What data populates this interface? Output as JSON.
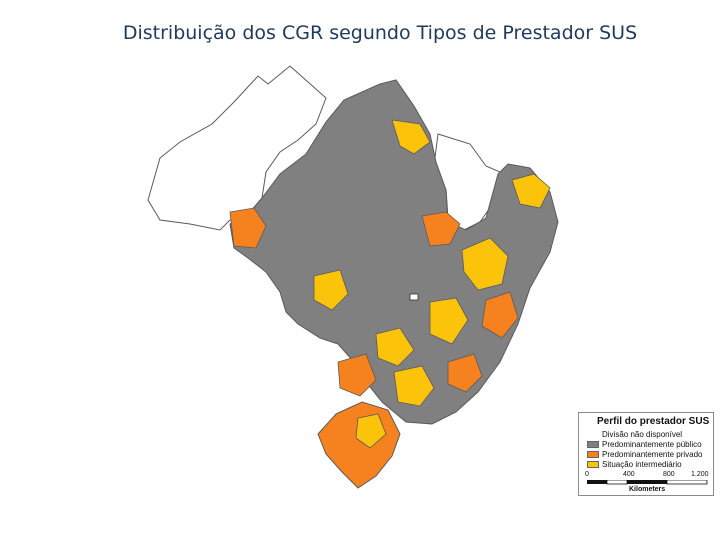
{
  "title": "Distribuição dos CGR segundo Tipos de Prestador SUS",
  "colors": {
    "not_available": "#ffffff",
    "public": "#808080",
    "private": "#f6821f",
    "intermediate": "#fcc30b",
    "border": "#5a5a5a"
  },
  "legend": {
    "title": "Perfil do prestador SUS",
    "items": [
      {
        "label": "Divisão não disponível",
        "color": "#ffffff"
      },
      {
        "label": "Predominantemente público",
        "color": "#808080"
      },
      {
        "label": "Predominantemente privado",
        "color": "#f6821f"
      },
      {
        "label": "Situação intermediário",
        "color": "#fcc30b"
      }
    ],
    "scale_ticks": [
      "0",
      "400",
      "800",
      "1.200"
    ],
    "scale_units": "Kilometers"
  }
}
